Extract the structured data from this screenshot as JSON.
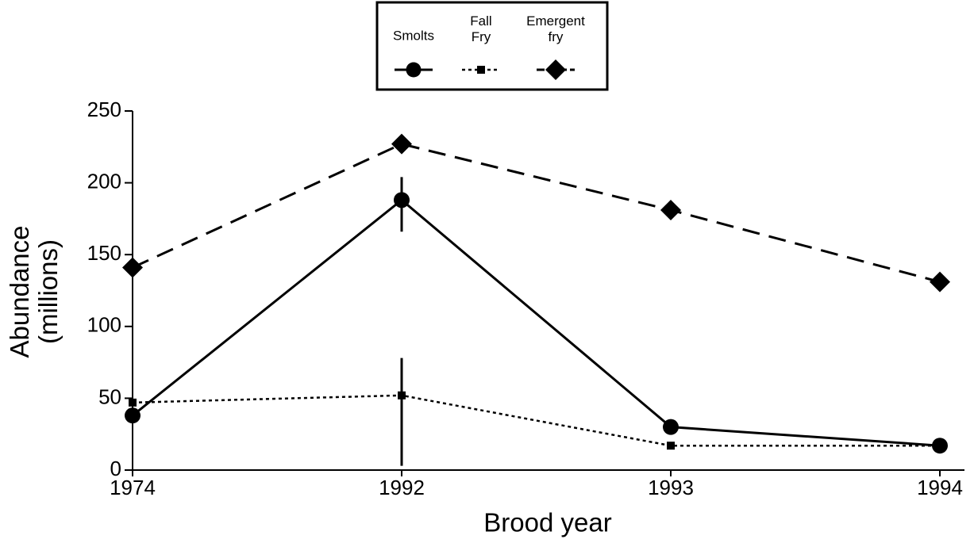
{
  "chart_data": {
    "type": "line",
    "categories": [
      "1974",
      "1992",
      "1993",
      "1994"
    ],
    "x_label": "Brood year",
    "y_label": "Abundance (millions)",
    "ylim": [
      0,
      250
    ],
    "yticks": [
      0,
      50,
      100,
      150,
      200,
      250
    ],
    "grid": false,
    "legend": "top",
    "series": [
      {
        "name": "Smolts",
        "color": "#000000",
        "marker": "circle",
        "dash": "solid",
        "values": [
          38,
          188,
          30,
          17
        ],
        "error_minus": [
          null,
          22,
          null,
          null
        ],
        "error_plus": [
          null,
          16,
          null,
          null
        ]
      },
      {
        "name": "Fall Fry",
        "color": "#000000",
        "marker": "square",
        "dash": "dotted",
        "values": [
          47,
          52,
          17,
          17
        ],
        "error_minus": [
          null,
          49,
          null,
          null
        ],
        "error_plus": [
          null,
          26,
          null,
          null
        ]
      },
      {
        "name": "Emergent fry",
        "color": "#000000",
        "marker": "diamond",
        "dash": "dashed",
        "values": [
          141,
          227,
          181,
          131
        ]
      }
    ]
  }
}
